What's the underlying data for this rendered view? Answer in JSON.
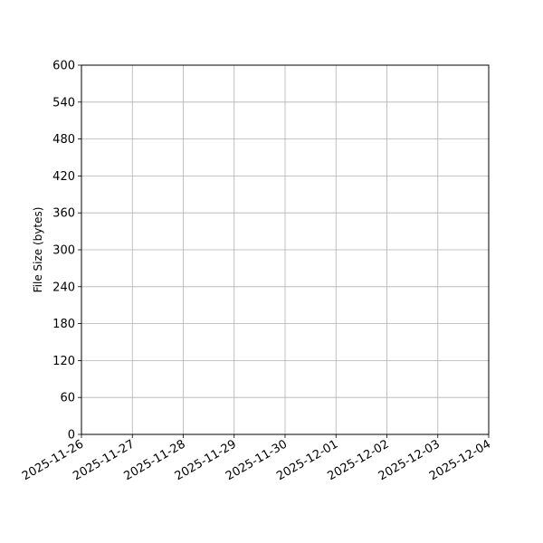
{
  "chart_data": {
    "type": "line",
    "title": "",
    "xlabel": "",
    "ylabel": "File Size (bytes)",
    "x_ticks": [
      "2025-11-26",
      "2025-11-27",
      "2025-11-28",
      "2025-11-29",
      "2025-11-30",
      "2025-12-01",
      "2025-12-02",
      "2025-12-03",
      "2025-12-04"
    ],
    "xlim": [
      "2025-11-26",
      "2025-12-04"
    ],
    "y_ticks": [
      0,
      60,
      120,
      180,
      240,
      300,
      360,
      420,
      480,
      540,
      600
    ],
    "ylim": [
      0,
      600
    ],
    "grid": true,
    "series": [],
    "colors": {
      "grid": "#b0b0b0",
      "axis": "#000000"
    }
  }
}
